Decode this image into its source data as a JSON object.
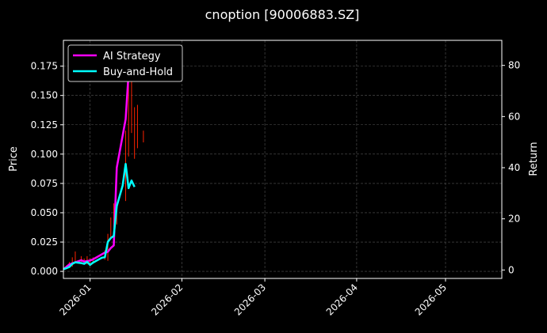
{
  "chart_data": {
    "type": "line",
    "title": "cnoption [90006883.SZ]",
    "xlabel": "",
    "ylabel": "Price",
    "ylabel_right": "Return",
    "x_ticks": [
      "2026-01",
      "2026-02",
      "2026-03",
      "2026-04",
      "2026-05"
    ],
    "x_range": [
      "2025-12-23",
      "2026-05-20"
    ],
    "price_ylim": [
      -0.006,
      0.197
    ],
    "price_yticks": [
      "0.000",
      "0.025",
      "0.050",
      "0.075",
      "0.100",
      "0.125",
      "0.150",
      "0.175"
    ],
    "return_ylim": [
      -3.3,
      89.8
    ],
    "return_yticks": [
      "0",
      "20",
      "40",
      "60",
      "80"
    ],
    "grid": true,
    "legend_position": "upper-left",
    "series": [
      {
        "name": "AI Strategy",
        "axis": "return",
        "color": "#ff00ff",
        "points": [
          {
            "x": "2025-12-23",
            "y": 0.3
          },
          {
            "x": "2025-12-24",
            "y": 1.2
          },
          {
            "x": "2025-12-25",
            "y": 2.2
          },
          {
            "x": "2025-12-26",
            "y": 2.6
          },
          {
            "x": "2025-12-27",
            "y": 3.0
          },
          {
            "x": "2025-12-29",
            "y": 3.8
          },
          {
            "x": "2025-12-30",
            "y": 3.3
          },
          {
            "x": "2026-01-01",
            "y": 3.7
          },
          {
            "x": "2026-01-02",
            "y": 4.2
          },
          {
            "x": "2026-01-06",
            "y": 6.8
          },
          {
            "x": "2026-01-07",
            "y": 7.1
          },
          {
            "x": "2026-01-08",
            "y": 8.6
          },
          {
            "x": "2026-01-09",
            "y": 9.6
          },
          {
            "x": "2026-01-10",
            "y": 40.0
          },
          {
            "x": "2026-01-13",
            "y": 59.0
          },
          {
            "x": "2026-01-14",
            "y": 77.0
          },
          {
            "x": "2026-01-15",
            "y": 86.0
          }
        ]
      },
      {
        "name": "Buy-and-Hold",
        "axis": "return",
        "color": "#00ffff",
        "points": [
          {
            "x": "2025-12-23",
            "y": 0.3
          },
          {
            "x": "2025-12-24",
            "y": 0.7
          },
          {
            "x": "2025-12-25",
            "y": 1.2
          },
          {
            "x": "2025-12-26",
            "y": 2.4
          },
          {
            "x": "2025-12-27",
            "y": 3.0
          },
          {
            "x": "2025-12-29",
            "y": 2.7
          },
          {
            "x": "2025-12-30",
            "y": 2.4
          },
          {
            "x": "2025-12-31",
            "y": 3.2
          },
          {
            "x": "2026-01-01",
            "y": 2.0
          },
          {
            "x": "2026-01-02",
            "y": 2.9
          },
          {
            "x": "2026-01-05",
            "y": 4.8
          },
          {
            "x": "2026-01-06",
            "y": 5.0
          },
          {
            "x": "2026-01-07",
            "y": 11.0
          },
          {
            "x": "2026-01-08",
            "y": 12.5
          },
          {
            "x": "2026-01-09",
            "y": 13.3
          },
          {
            "x": "2026-01-10",
            "y": 25.0
          },
          {
            "x": "2026-01-12",
            "y": 33.0
          },
          {
            "x": "2026-01-13",
            "y": 41.5
          },
          {
            "x": "2026-01-14",
            "y": 32.0
          },
          {
            "x": "2026-01-15",
            "y": 35.0
          },
          {
            "x": "2026-01-16",
            "y": 32.5
          }
        ]
      }
    ],
    "price_bars": {
      "axis": "price",
      "color": "#ff2200",
      "bars": [
        {
          "x": "2025-12-24",
          "low": 0.002,
          "high": 0.005
        },
        {
          "x": "2025-12-25",
          "low": 0.003,
          "high": 0.008
        },
        {
          "x": "2025-12-26",
          "low": 0.004,
          "high": 0.012
        },
        {
          "x": "2025-12-27",
          "low": 0.007,
          "high": 0.017
        },
        {
          "x": "2025-12-29",
          "low": 0.008,
          "high": 0.013
        },
        {
          "x": "2025-12-30",
          "low": 0.008,
          "high": 0.011
        },
        {
          "x": "2025-12-31",
          "low": 0.006,
          "high": 0.013
        },
        {
          "x": "2026-01-01",
          "low": 0.006,
          "high": 0.011
        },
        {
          "x": "2026-01-02",
          "low": 0.007,
          "high": 0.012
        },
        {
          "x": "2026-01-06",
          "low": 0.01,
          "high": 0.018
        },
        {
          "x": "2026-01-07",
          "low": 0.009,
          "high": 0.032
        },
        {
          "x": "2026-01-08",
          "low": 0.028,
          "high": 0.046
        },
        {
          "x": "2026-01-09",
          "low": 0.038,
          "high": 0.058
        },
        {
          "x": "2026-01-10",
          "low": 0.04,
          "high": 0.054
        },
        {
          "x": "2026-01-13",
          "low": 0.06,
          "high": 0.12
        },
        {
          "x": "2026-01-14",
          "low": 0.098,
          "high": 0.17
        },
        {
          "x": "2026-01-15",
          "low": 0.118,
          "high": 0.19
        },
        {
          "x": "2026-01-16",
          "low": 0.096,
          "high": 0.14
        },
        {
          "x": "2026-01-17",
          "low": 0.105,
          "high": 0.142
        },
        {
          "x": "2026-01-19",
          "low": 0.11,
          "high": 0.12
        }
      ]
    }
  }
}
